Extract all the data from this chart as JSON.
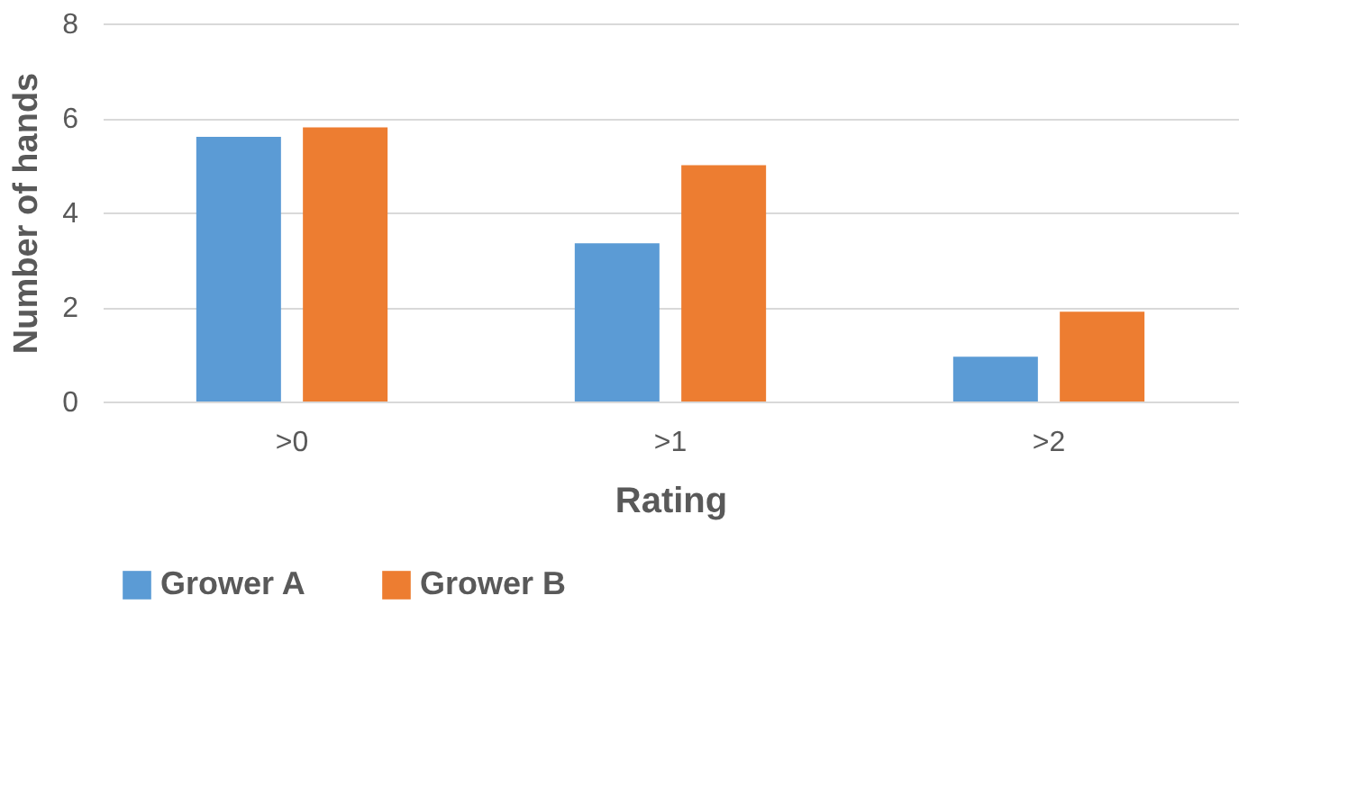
{
  "chart_data": {
    "type": "bar",
    "xlabel": "Rating",
    "ylabel": "Number of hands",
    "categories": [
      ">0",
      ">1",
      ">2"
    ],
    "series": [
      {
        "name": "Grower A",
        "color": "#5b9bd5",
        "values": [
          5.6,
          3.35,
          0.95
        ]
      },
      {
        "name": "Grower B",
        "color": "#ed7d31",
        "values": [
          5.8,
          5.0,
          1.9
        ]
      }
    ],
    "ylim": [
      0,
      8
    ],
    "yticks": [
      0,
      2,
      4,
      6,
      8
    ],
    "grid": "y",
    "legend": "bottom"
  }
}
